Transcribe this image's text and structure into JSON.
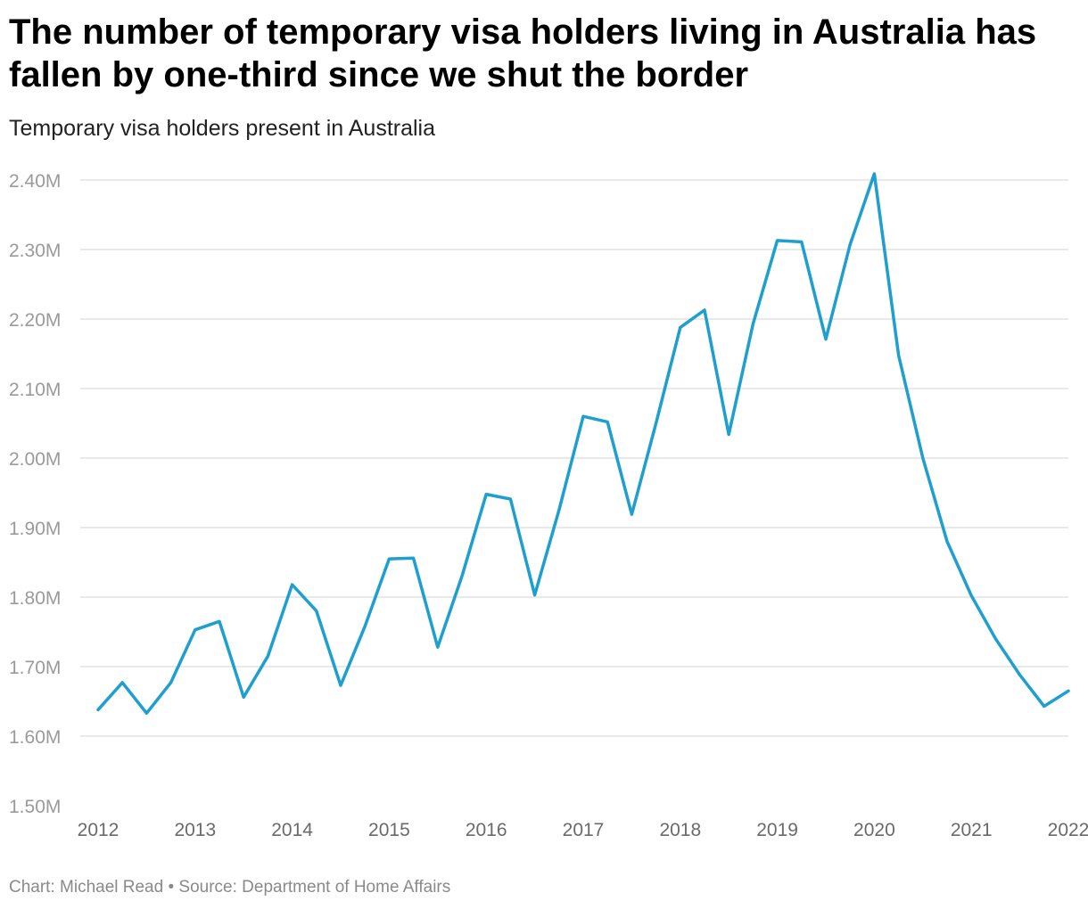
{
  "chart_data": {
    "type": "line",
    "title": "The number of temporary visa holders living in Australia has fallen by one-third since we shut the border",
    "subtitle": "Temporary visa holders present in Australia",
    "x": [
      2012.0,
      2012.25,
      2012.5,
      2012.75,
      2013.0,
      2013.25,
      2013.5,
      2013.75,
      2014.0,
      2014.25,
      2014.5,
      2014.75,
      2015.0,
      2015.25,
      2015.5,
      2015.75,
      2016.0,
      2016.25,
      2016.5,
      2016.75,
      2017.0,
      2017.25,
      2017.5,
      2017.75,
      2018.0,
      2018.25,
      2018.5,
      2018.75,
      2019.0,
      2019.25,
      2019.5,
      2019.75,
      2020.0,
      2020.25,
      2020.5,
      2020.75,
      2021.0,
      2021.25,
      2021.5,
      2021.75,
      2022.0
    ],
    "series": [
      {
        "values": [
          1638000,
          1677000,
          1633000,
          1677000,
          1753000,
          1765000,
          1656000,
          1715000,
          1818000,
          1780000,
          1673000,
          1758000,
          1855000,
          1856000,
          1728000,
          1830000,
          1948000,
          1941000,
          1803000,
          1925000,
          2060000,
          2052000,
          1919000,
          2050000,
          2188000,
          2213000,
          2034000,
          2193000,
          2313000,
          2311000,
          2171000,
          2307000,
          2409000,
          2148000,
          2000000,
          1880000,
          1802000,
          1740000,
          1688000,
          1643000,
          1665000
        ],
        "color": "#1f9fcf"
      }
    ],
    "xlabel": "",
    "ylabel": "",
    "xlim": [
      2012,
      2022
    ],
    "ylim": [
      1500000,
      2400000
    ],
    "yticks": [
      1500000,
      1600000,
      1700000,
      1800000,
      1900000,
      2000000,
      2100000,
      2200000,
      2300000,
      2400000
    ],
    "ytick_labels": [
      "1.50M",
      "1.60M",
      "1.70M",
      "1.80M",
      "1.90M",
      "2.00M",
      "2.10M",
      "2.20M",
      "2.30M",
      "2.40M"
    ],
    "xticks": [
      2012,
      2013,
      2014,
      2015,
      2016,
      2017,
      2018,
      2019,
      2020,
      2021,
      2022
    ],
    "xtick_labels": [
      "2012",
      "2013",
      "2014",
      "2015",
      "2016",
      "2017",
      "2018",
      "2019",
      "2020",
      "2021",
      "2022"
    ],
    "grid": true,
    "legend": "none"
  },
  "footer": {
    "credit": "Chart: Michael Read • Source: Department of Home Affairs"
  }
}
